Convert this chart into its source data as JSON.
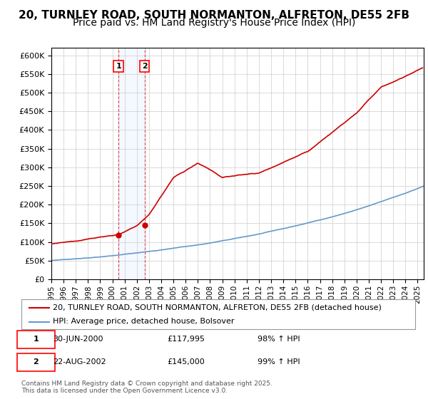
{
  "title": "20, TURNLEY ROAD, SOUTH NORMANTON, ALFRETON, DE55 2FB",
  "subtitle": "Price paid vs. HM Land Registry's House Price Index (HPI)",
  "ylim": [
    0,
    620000
  ],
  "yticks": [
    0,
    50000,
    100000,
    150000,
    200000,
    250000,
    300000,
    350000,
    400000,
    450000,
    500000,
    550000,
    600000
  ],
  "xlim_start": 1995.0,
  "xlim_end": 2025.5,
  "red_line_color": "#cc0000",
  "blue_line_color": "#6699cc",
  "sale1_x": 2000.5,
  "sale1_y": 117995,
  "sale2_x": 2002.64,
  "sale2_y": 145000,
  "sale1_label": "1",
  "sale2_label": "2",
  "legend_line1": "20, TURNLEY ROAD, SOUTH NORMANTON, ALFRETON, DE55 2FB (detached house)",
  "legend_line2": "HPI: Average price, detached house, Bolsover",
  "footer": "Contains HM Land Registry data © Crown copyright and database right 2025.\nThis data is licensed under the Open Government Licence v3.0.",
  "background_color": "#ffffff",
  "grid_color": "#cccccc",
  "title_fontsize": 11,
  "subtitle_fontsize": 10
}
